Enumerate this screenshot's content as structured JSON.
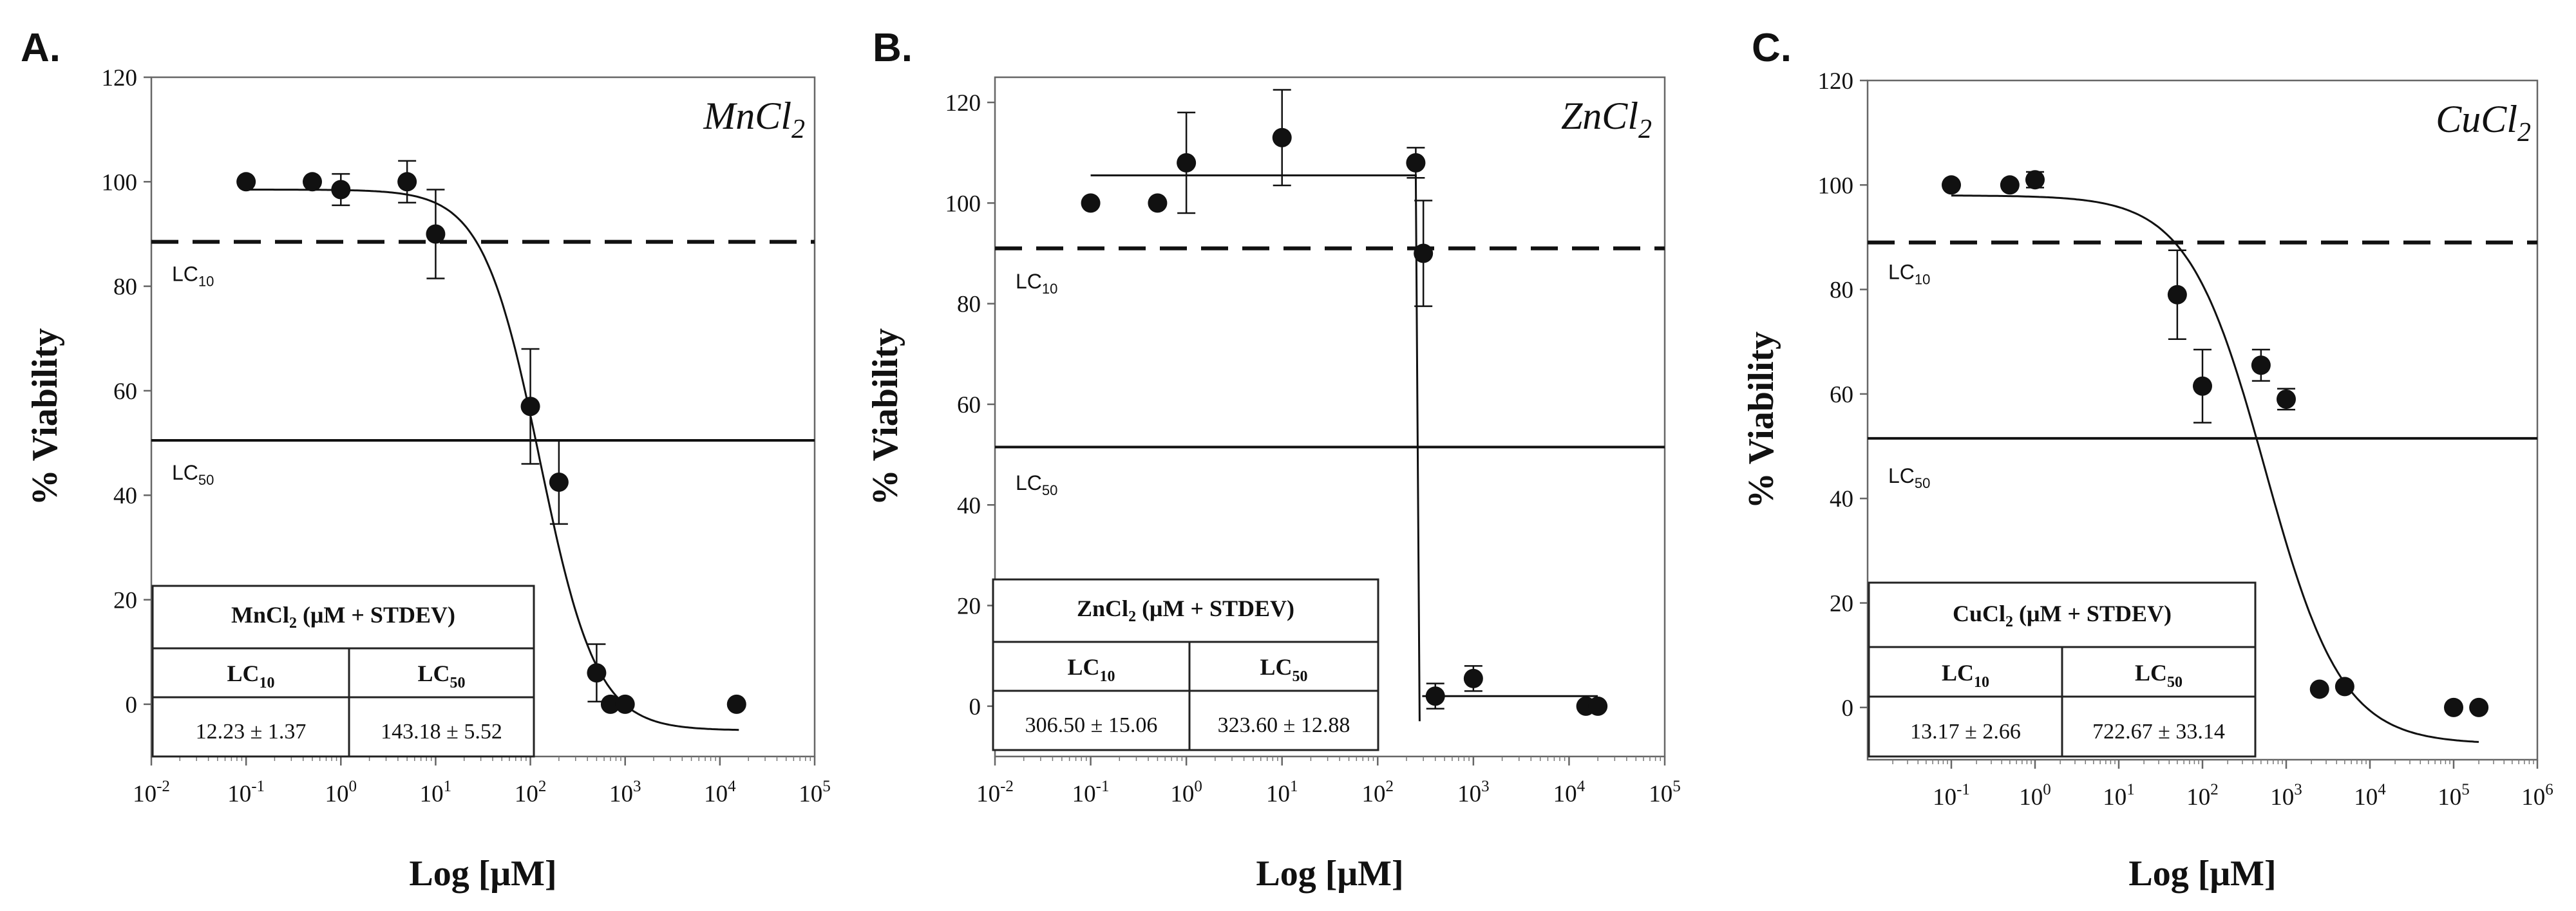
{
  "chart_data": [
    {
      "type": "scatter",
      "panel_label": "A.",
      "compound": {
        "base": "MnCl",
        "sub": "2"
      },
      "xlabel": "Log [μM]",
      "ylabel": "% Viability",
      "x_scale": "log10",
      "xlim_exp": [
        -2,
        5
      ],
      "x_tick_exponents": [
        -2,
        -1,
        0,
        1,
        2,
        3,
        4,
        5
      ],
      "ylim": [
        -10,
        120
      ],
      "y_ticks": [
        0,
        20,
        40,
        60,
        80,
        100,
        120
      ],
      "points": [
        {
          "x": 0.1,
          "y": 100
        },
        {
          "x": 0.5,
          "y": 100
        },
        {
          "x": 1,
          "y": 98.5,
          "err": 3
        },
        {
          "x": 5,
          "y": 100,
          "err": 4
        },
        {
          "x": 10,
          "y": 90,
          "err": 8.5
        },
        {
          "x": 100,
          "y": 57,
          "err": 11
        },
        {
          "x": 200,
          "y": 42.5,
          "err": 8
        },
        {
          "x": 500,
          "y": 6,
          "err": 5.5
        },
        {
          "x": 700,
          "y": 0
        },
        {
          "x": 1000,
          "y": 0
        },
        {
          "x": 15000,
          "y": 0
        }
      ],
      "fit": {
        "model": "sigmoid",
        "top": 98.5,
        "bottom": -5,
        "mid_exp": 2.1,
        "slope": 1.45,
        "x_range_exp": [
          -1,
          4.2
        ]
      },
      "ref_lines": [
        {
          "y": 88.5,
          "style": "dashed",
          "label": "LC",
          "label_sub": "10",
          "label_y": 81
        },
        {
          "y": 50.5,
          "style": "solid",
          "label": "LC",
          "label_sub": "50",
          "label_y": 43
        }
      ],
      "table": {
        "title": "MnCl",
        "title_sub": "2",
        "title_suffix": " (μM + STDEV)",
        "headers": [
          {
            "base": "LC",
            "sub": "10"
          },
          {
            "base": "LC",
            "sub": "50"
          }
        ],
        "values": [
          "12.23 ± 1.37",
          "143.18 ± 5.52"
        ]
      }
    },
    {
      "type": "scatter",
      "panel_label": "B.",
      "compound": {
        "base": "ZnCl",
        "sub": "2"
      },
      "xlabel": "Log [μM]",
      "ylabel": "% Viability",
      "x_scale": "log10",
      "xlim_exp": [
        -2,
        5
      ],
      "x_tick_exponents": [
        -2,
        -1,
        0,
        1,
        2,
        3,
        4,
        5
      ],
      "ylim": [
        -10,
        125
      ],
      "y_ticks": [
        0,
        20,
        40,
        60,
        80,
        100,
        120
      ],
      "points": [
        {
          "x": 0.1,
          "y": 100
        },
        {
          "x": 0.5,
          "y": 100
        },
        {
          "x": 1,
          "y": 108,
          "err": 10
        },
        {
          "x": 10,
          "y": 113,
          "err": 9.5
        },
        {
          "x": 250,
          "y": 108,
          "err": 3
        },
        {
          "x": 300,
          "y": 90,
          "err": 10.5
        },
        {
          "x": 400,
          "y": 2,
          "err": 2.5
        },
        {
          "x": 1000,
          "y": 5.5,
          "err": 2.5
        },
        {
          "x": 15000,
          "y": 0
        },
        {
          "x": 20000,
          "y": 0
        }
      ],
      "fit": {
        "model": "step",
        "top": 105.5,
        "bottom": 2,
        "x_step": 250,
        "x_range_exp": [
          -1,
          4.3
        ]
      },
      "ref_lines": [
        {
          "y": 91,
          "style": "dashed",
          "label": "LC",
          "label_sub": "10",
          "label_y": 83
        },
        {
          "y": 51.5,
          "style": "solid",
          "label": "LC",
          "label_sub": "50",
          "label_y": 43
        }
      ],
      "table": {
        "title": "ZnCl",
        "title_sub": "2",
        "title_suffix": " (μM + STDEV)",
        "headers": [
          {
            "base": "LC",
            "sub": "10"
          },
          {
            "base": "LC",
            "sub": "50"
          }
        ],
        "values": [
          "306.50 ± 15.06",
          "323.60 ± 12.88"
        ]
      }
    },
    {
      "type": "scatter",
      "panel_label": "C.",
      "compound": {
        "base": "CuCl",
        "sub": "2"
      },
      "xlabel": "Log [μM]",
      "ylabel": "% Viability",
      "x_scale": "log10",
      "xlim_exp": [
        -2,
        6
      ],
      "x_tick_exponents": [
        -1,
        0,
        1,
        2,
        3,
        4,
        5,
        6
      ],
      "ylim": [
        -10,
        120
      ],
      "y_ticks": [
        0,
        20,
        40,
        60,
        80,
        100,
        120
      ],
      "points": [
        {
          "x": 0.1,
          "y": 100
        },
        {
          "x": 0.5,
          "y": 100
        },
        {
          "x": 1,
          "y": 101,
          "err": 1.5
        },
        {
          "x": 50,
          "y": 79,
          "err": 8.5
        },
        {
          "x": 100,
          "y": 61.5,
          "err": 7
        },
        {
          "x": 500,
          "y": 65.5,
          "err": 3
        },
        {
          "x": 1000,
          "y": 59,
          "err": 2
        },
        {
          "x": 2500,
          "y": 3.5
        },
        {
          "x": 5000,
          "y": 4
        },
        {
          "x": 100000,
          "y": 0
        },
        {
          "x": 200000,
          "y": 0
        }
      ],
      "fit": {
        "model": "sigmoid",
        "top": 98,
        "bottom": -7,
        "mid_exp": 2.75,
        "slope": 0.95,
        "x_range_exp": [
          -1,
          5.3
        ]
      },
      "ref_lines": [
        {
          "y": 89,
          "style": "dashed",
          "label": "LC",
          "label_sub": "10",
          "label_y": 82
        },
        {
          "y": 51.5,
          "style": "solid",
          "label": "LC",
          "label_sub": "50",
          "label_y": 43
        }
      ],
      "table": {
        "title": "CuCl",
        "title_sub": "2",
        "title_suffix": " (μM + STDEV)",
        "headers": [
          {
            "base": "LC",
            "sub": "10"
          },
          {
            "base": "LC",
            "sub": "50"
          }
        ],
        "values": [
          "13.17 ± 2.66",
          "722.67 ± 33.14"
        ]
      }
    }
  ]
}
